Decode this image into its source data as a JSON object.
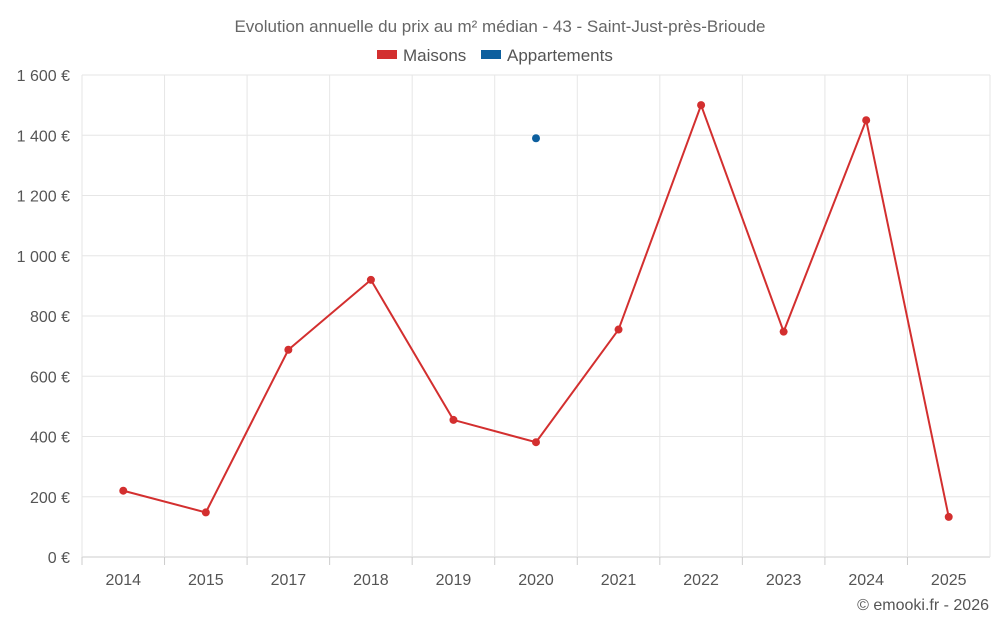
{
  "title": "Evolution annuelle du prix au m² médian - 43 - Saint-Just-près-Brioude",
  "credit": "© emooki.fr - 2026",
  "colors": {
    "maisons": "#d32f2f",
    "appartements": "#0d5f9e"
  },
  "chart_data": {
    "type": "line",
    "title": "Evolution annuelle du prix au m² médian - 43 - Saint-Just-près-Brioude",
    "categories": [
      "2014",
      "2015",
      "2017",
      "2018",
      "2019",
      "2020",
      "2021",
      "2022",
      "2023",
      "2024",
      "2025"
    ],
    "ylim": [
      0,
      1600
    ],
    "yticks": [
      0,
      200,
      400,
      600,
      800,
      1000,
      1200,
      1400,
      1600
    ],
    "ytick_labels": [
      "0 €",
      "200 €",
      "400 €",
      "600 €",
      "800 €",
      "1 000 €",
      "1 200 €",
      "1 400 €",
      "1 600 €"
    ],
    "grid": true,
    "legend_position": "top-center",
    "series": [
      {
        "name": "Maisons",
        "color": "#d32f2f",
        "values": [
          220,
          148,
          688,
          920,
          455,
          381,
          755,
          1500,
          748,
          1450,
          133
        ]
      },
      {
        "name": "Appartements",
        "color": "#0d5f9e",
        "values": [
          null,
          null,
          null,
          null,
          null,
          1390,
          null,
          null,
          null,
          null,
          null
        ]
      }
    ]
  }
}
